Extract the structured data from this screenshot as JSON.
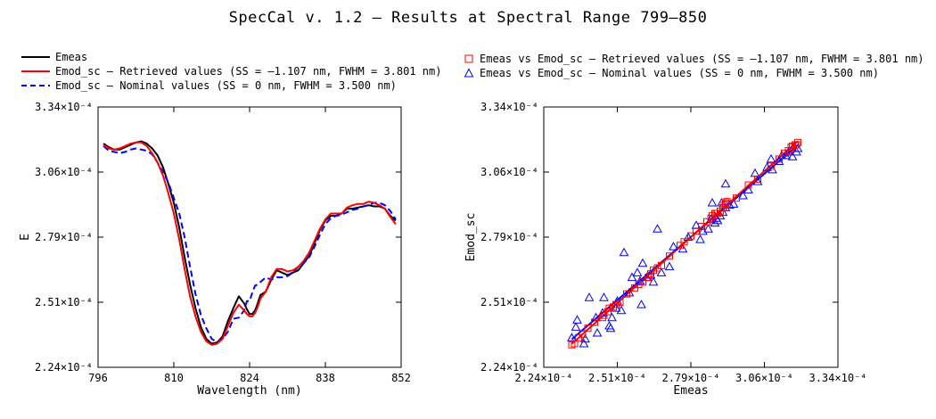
{
  "title": "SpecCal v. 1.2 – Results at Spectral Range 799–850",
  "colors": {
    "measured": "#000000",
    "retrieved": "#ff0000",
    "nominal": "#0000ff"
  },
  "legend_left": [
    {
      "label": "Emeas",
      "style": "solid-black"
    },
    {
      "label": "Emod_sc – Retrieved values (SS = –1.107 nm, FWHM =  3.801 nm)",
      "style": "solid-red"
    },
    {
      "label": "Emod_sc – Nominal values (SS = 0 nm, FWHM =  3.500 nm)",
      "style": "dashed-blue"
    }
  ],
  "legend_right": [
    {
      "label": "Emeas vs Emod_sc – Retrieved values (SS = –1.107 nm, FWHM =  3.801 nm)",
      "style": "square-red"
    },
    {
      "label": "Emeas vs Emod_sc – Nominal values (SS = 0 nm, FWHM =  3.500 nm)",
      "style": "triangle-blue"
    }
  ],
  "chart_data": [
    {
      "type": "line",
      "xlabel": "Wavelength (nm)",
      "ylabel": "E",
      "xlim": [
        796,
        852
      ],
      "ylim": [
        0.000224,
        0.000334
      ],
      "xticks": [
        "796",
        "810",
        "824",
        "838",
        "852"
      ],
      "yticks": [
        "2.24×10⁻⁴",
        "2.51×10⁻⁴",
        "2.79×10⁻⁴",
        "3.06×10⁻⁴",
        "3.34×10⁻⁴"
      ],
      "series": [
        {
          "name": "Emeas",
          "x": [
            797.0,
            798.0,
            799.0,
            800.0,
            801.0,
            802.0,
            803.0,
            804.0,
            805.0,
            806.0,
            807.0,
            808.0,
            809.0,
            810.0,
            811.0,
            812.0,
            813.0,
            814.0,
            815.0,
            816.0,
            817.0,
            818.0,
            819.0,
            820.0,
            821.0,
            822.0,
            823.0,
            823.5,
            824.0,
            824.5,
            825.0,
            825.5,
            826.0,
            827.0,
            828.0,
            829.0,
            830.0,
            831.0,
            832.0,
            833.0,
            834.0,
            835.0,
            836.0,
            837.0,
            838.0,
            839.0,
            840.0,
            841.0,
            842.0,
            843.0,
            844.0,
            845.0,
            846.0,
            847.0,
            848.0,
            849.0,
            850.0,
            851.0
          ],
          "y": [
            0.0003185,
            0.000317,
            0.000316,
            0.000316,
            0.000317,
            0.000318,
            0.000319,
            0.0003195,
            0.0003185,
            0.0003165,
            0.0003135,
            0.0003085,
            0.0003015,
            0.0002935,
            0.000283,
            0.0002705,
            0.000259,
            0.000249,
            0.000241,
            0.000236,
            0.000234,
            0.0002345,
            0.000237,
            0.0002435,
            0.000249,
            0.000254,
            0.000251,
            0.0002485,
            0.0002465,
            0.0002465,
            0.000248,
            0.000251,
            0.0002545,
            0.000256,
            0.000261,
            0.000265,
            0.000264,
            0.000263,
            0.000264,
            0.000265,
            0.000268,
            0.000271,
            0.0002765,
            0.000282,
            0.000286,
            0.000288,
            0.000288,
            0.000289,
            0.000291,
            0.000291,
            0.0002915,
            0.000292,
            0.0002925,
            0.000292,
            0.000292,
            0.000291,
            0.000288,
            0.000286
          ]
        },
        {
          "name": "Emod_sc – Retrieved values",
          "x": [
            797.0,
            798.0,
            799.0,
            800.0,
            801.0,
            802.0,
            803.0,
            804.0,
            805.0,
            806.0,
            807.0,
            808.0,
            809.0,
            810.0,
            811.0,
            812.0,
            813.0,
            814.0,
            815.0,
            816.0,
            817.0,
            818.0,
            819.0,
            820.0,
            821.0,
            822.0,
            823.0,
            823.5,
            824.0,
            824.5,
            825.0,
            825.5,
            826.0,
            827.0,
            828.0,
            829.0,
            830.0,
            831.0,
            832.0,
            833.0,
            834.0,
            835.0,
            836.0,
            837.0,
            838.0,
            839.0,
            840.0,
            841.0,
            842.0,
            843.0,
            844.0,
            845.0,
            846.0,
            847.0,
            848.0,
            849.0,
            850.0,
            851.0
          ],
          "y": [
            0.000318,
            0.0003165,
            0.000316,
            0.0003165,
            0.0003175,
            0.0003185,
            0.000319,
            0.000319,
            0.0003175,
            0.0003145,
            0.0003105,
            0.000305,
            0.0002975,
            0.000289,
            0.000278,
            0.0002655,
            0.000254,
            0.0002455,
            0.000239,
            0.000235,
            0.0002335,
            0.000234,
            0.000236,
            0.0002415,
            0.000247,
            0.0002505,
            0.000248,
            0.0002465,
            0.0002455,
            0.0002455,
            0.000247,
            0.0002495,
            0.000253,
            0.000256,
            0.000262,
            0.0002655,
            0.0002655,
            0.0002645,
            0.000265,
            0.0002665,
            0.000269,
            0.0002725,
            0.0002775,
            0.0002825,
            0.0002865,
            0.000289,
            0.000289,
            0.000289,
            0.0002915,
            0.0002925,
            0.000293,
            0.000293,
            0.000294,
            0.0002935,
            0.0002925,
            0.000291,
            0.0002875,
            0.0002845
          ]
        },
        {
          "name": "Emod_sc – Nominal values",
          "x": [
            797.0,
            798.0,
            799.0,
            800.0,
            801.0,
            802.0,
            803.0,
            804.0,
            805.0,
            806.0,
            807.0,
            808.0,
            809.0,
            810.0,
            811.0,
            812.0,
            813.0,
            814.0,
            815.0,
            816.0,
            817.0,
            818.0,
            819.0,
            820.0,
            821.0,
            822.0,
            823.0,
            823.5,
            824.0,
            824.5,
            825.0,
            825.5,
            826.0,
            827.0,
            828.0,
            829.0,
            830.0,
            831.0,
            832.0,
            833.0,
            834.0,
            835.0,
            836.0,
            837.0,
            838.0,
            839.0,
            840.0,
            841.0,
            842.0,
            843.0,
            844.0,
            845.0,
            846.0,
            847.0,
            848.0,
            849.0,
            850.0,
            851.0
          ],
          "y": [
            0.0003175,
            0.0003155,
            0.000315,
            0.0003145,
            0.000315,
            0.000316,
            0.0003165,
            0.000316,
            0.0003155,
            0.000314,
            0.0003105,
            0.0003065,
            0.000302,
            0.0002955,
            0.000289,
            0.000279,
            0.0002665,
            0.000255,
            0.000246,
            0.0002405,
            0.000236,
            0.0002345,
            0.000236,
            0.000239,
            0.0002445,
            0.000245,
            0.000248,
            0.000252,
            0.000252,
            0.0002555,
            0.0002585,
            0.000259,
            0.00026,
            0.000262,
            0.000261,
            0.000262,
            0.000262,
            0.0002625,
            0.000264,
            0.0002665,
            0.000268,
            0.0002705,
            0.000275,
            0.00028,
            0.0002845,
            0.000287,
            0.000288,
            0.0002885,
            0.0002895,
            0.0002905,
            0.000291,
            0.000292,
            0.0002925,
            0.0002935,
            0.0002935,
            0.0002925,
            0.00029,
            0.0002865
          ]
        }
      ]
    },
    {
      "type": "scatter",
      "xlabel": "Emeas",
      "ylabel": "Emod_sc",
      "xlim": [
        0.000224,
        0.000334
      ],
      "ylim": [
        0.000224,
        0.000334
      ],
      "xticks": [
        "2.24×10⁻⁴",
        "2.51×10⁻⁴",
        "2.79×10⁻⁴",
        "3.06×10⁻⁴",
        "3.34×10⁻⁴"
      ],
      "yticks": [
        "2.24×10⁻⁴",
        "2.51×10⁻⁴",
        "2.79×10⁻⁴",
        "3.06×10⁻⁴",
        "3.34×10⁻⁴"
      ],
      "series": [
        {
          "name": "Emeas vs Emod_sc – Retrieved values",
          "marker": "square",
          "points": [
            [
              0.0002345,
              0.0002335
            ],
            [
              0.0002355,
              0.000234
            ],
            [
              0.000237,
              0.0002365
            ],
            [
              0.0002385,
              0.000238
            ],
            [
              0.0002405,
              0.0002405
            ],
            [
              0.000243,
              0.000243
            ],
            [
              0.000246,
              0.000245
            ],
            [
              0.0002465,
              0.000246
            ],
            [
              0.000248,
              0.0002475
            ],
            [
              0.0002485,
              0.000249
            ],
            [
              0.00025,
              0.0002495
            ],
            [
              0.000251,
              0.0002505
            ],
            [
              0.0002525,
              0.0002515
            ],
            [
              0.000255,
              0.000255
            ],
            [
              0.000258,
              0.0002575
            ],
            [
              0.0002595,
              0.000259
            ],
            [
              0.000261,
              0.00026
            ],
            [
              0.000263,
              0.000262
            ],
            [
              0.000264,
              0.0002635
            ],
            [
              0.000265,
              0.000265
            ],
            [
              0.0002665,
              0.000266
            ],
            [
              0.000268,
              0.000267
            ],
            [
              0.000271,
              0.000271
            ],
            [
              0.000275,
              0.0002755
            ],
            [
              0.0002765,
              0.000277
            ],
            [
              0.000279,
              0.0002795
            ],
            [
              0.000281,
              0.0002815
            ],
            [
              0.000283,
              0.0002835
            ],
            [
              0.000285,
              0.0002855
            ],
            [
              0.0002865,
              0.000287
            ],
            [
              0.000287,
              0.000288
            ],
            [
              0.000288,
              0.000289
            ],
            [
              0.0002885,
              0.000289
            ],
            [
              0.000289,
              0.000289
            ],
            [
              0.00029,
              0.00029
            ],
            [
              0.000291,
              0.0002915
            ],
            [
              0.0002915,
              0.0002925
            ],
            [
              0.000292,
              0.000293
            ],
            [
              0.000292,
              0.0002935
            ],
            [
              0.0002925,
              0.000294
            ],
            [
              0.000296,
              0.0002955
            ],
            [
              0.0003005,
              0.000301
            ],
            [
              0.000304,
              0.0003035
            ],
            [
              0.000309,
              0.000309
            ],
            [
              0.000312,
              0.000312
            ],
            [
              0.000314,
              0.0003145
            ],
            [
              0.0003155,
              0.0003155
            ],
            [
              0.0003165,
              0.000317
            ],
            [
              0.000317,
              0.0003175
            ],
            [
              0.000318,
              0.000318
            ],
            [
              0.0003185,
              0.000318
            ],
            [
              0.000319,
              0.000319
            ]
          ]
        },
        {
          "name": "Emeas vs Emod_sc – Nominal values",
          "marker": "triangle",
          "points": [
            [
              0.0002345,
              0.0002365
            ],
            [
              0.000236,
              0.000241
            ],
            [
              0.0002365,
              0.000244
            ],
            [
              0.000239,
              0.000234
            ],
            [
              0.0002395,
              0.000236
            ],
            [
              0.000241,
              0.0002535
            ],
            [
              0.0002435,
              0.000245
            ],
            [
              0.000244,
              0.0002385
            ],
            [
              0.000246,
              0.000247
            ],
            [
              0.0002465,
              0.0002535
            ],
            [
              0.0002485,
              0.0002415
            ],
            [
              0.000249,
              0.0002405
            ],
            [
              0.0002495,
              0.000245
            ],
            [
              0.000251,
              0.000249
            ],
            [
              0.0002515,
              0.000252
            ],
            [
              0.000253,
              0.000248
            ],
            [
              0.000254,
              0.0002725
            ],
            [
              0.000256,
              0.0002555
            ],
            [
              0.000257,
              0.000262
            ],
            [
              0.000259,
              0.000264
            ],
            [
              0.00026,
              0.0002605
            ],
            [
              0.0002605,
              0.0002505
            ],
            [
              0.000261,
              0.000268
            ],
            [
              0.0002625,
              0.000262
            ],
            [
              0.000264,
              0.000263
            ],
            [
              0.000265,
              0.00026
            ],
            [
              0.0002665,
              0.0002825
            ],
            [
              0.000268,
              0.000264
            ],
            [
              0.000271,
              0.0002665
            ],
            [
              0.0002725,
              0.000275
            ],
            [
              0.000276,
              0.000274
            ],
            [
              0.000278,
              0.000279
            ],
            [
              0.000281,
              0.000284
            ],
            [
              0.0002825,
              0.000278
            ],
            [
              0.0002835,
              0.0002815
            ],
            [
              0.0002855,
              0.0002825
            ],
            [
              0.0002865,
              0.0002865
            ],
            [
              0.000287,
              0.0002935
            ],
            [
              0.000288,
              0.000285
            ],
            [
              0.0002885,
              0.000287
            ],
            [
              0.000289,
              0.000286
            ],
            [
              0.00029,
              0.000288
            ],
            [
              0.0002905,
              0.0002935
            ],
            [
              0.000291,
              0.0002895
            ],
            [
              0.000292,
              0.0002915
            ],
            [
              0.000292,
              0.0003015
            ],
            [
              0.0002935,
              0.0002925
            ],
            [
              0.000295,
              0.000293
            ],
            [
              0.0002985,
              0.0002965
            ],
            [
              0.0003005,
              0.000299
            ],
            [
              0.000303,
              0.000306
            ],
            [
              0.000304,
              0.0003025
            ],
            [
              0.0003075,
              0.0003085
            ],
            [
              0.000309,
              0.000312
            ],
            [
              0.0003095,
              0.0003075
            ],
            [
              0.000312,
              0.000311
            ],
            [
              0.000313,
              0.0003135
            ],
            [
              0.0003145,
              0.0003135
            ],
            [
              0.0003155,
              0.000315
            ],
            [
              0.000317,
              0.000313
            ],
            [
              0.000317,
              0.0003165
            ],
            [
              0.0003185,
              0.000315
            ],
            [
              0.000319,
              0.0003165
            ]
          ]
        }
      ]
    }
  ]
}
